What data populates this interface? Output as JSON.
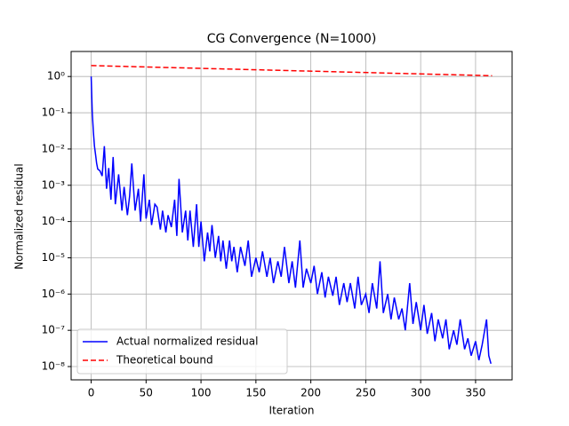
{
  "chart_data": {
    "type": "line",
    "title": "CG Convergence (N=1000)",
    "xlabel": "Iteration",
    "ylabel": "Normalized residual",
    "xlim": [
      -18.25,
      383.25
    ],
    "xticks": [
      0,
      50,
      100,
      150,
      200,
      250,
      300,
      350
    ],
    "ylim": [
      4.3e-09,
      4.9
    ],
    "yscale": "log",
    "yticks": [
      {
        "value": 1,
        "label": "10⁰"
      },
      {
        "value": 0.1,
        "label": "10⁻¹"
      },
      {
        "value": 0.01,
        "label": "10⁻²"
      },
      {
        "value": 0.001,
        "label": "10⁻³"
      },
      {
        "value": 0.0001,
        "label": "10⁻⁴"
      },
      {
        "value": 1e-05,
        "label": "10⁻⁵"
      },
      {
        "value": 1e-06,
        "label": "10⁻⁶"
      },
      {
        "value": 1e-07,
        "label": "10⁻⁷"
      },
      {
        "value": 1e-08,
        "label": "10⁻⁸"
      }
    ],
    "grid": true,
    "legend": "lower left",
    "series": [
      {
        "name": "Actual normalized residual",
        "color": "#0000ff",
        "linestyle": "solid",
        "x": [
          0,
          1,
          2,
          3,
          4,
          5,
          6,
          8,
          10,
          12,
          14,
          16,
          18,
          20,
          22,
          25,
          28,
          30,
          33,
          35,
          37,
          40,
          43,
          45,
          48,
          50,
          53,
          55,
          58,
          60,
          63,
          65,
          68,
          70,
          73,
          76,
          78,
          80,
          83,
          86,
          88,
          90,
          93,
          96,
          98,
          100,
          103,
          106,
          108,
          110,
          113,
          116,
          118,
          120,
          123,
          126,
          128,
          130,
          133,
          136,
          140,
          143,
          146,
          150,
          153,
          156,
          160,
          163,
          166,
          170,
          173,
          176,
          180,
          183,
          186,
          190,
          193,
          196,
          200,
          203,
          206,
          210,
          213,
          216,
          220,
          223,
          226,
          230,
          233,
          236,
          240,
          243,
          246,
          250,
          253,
          256,
          260,
          263,
          266,
          270,
          273,
          276,
          280,
          283,
          286,
          290,
          293,
          296,
          300,
          303,
          306,
          310,
          313,
          316,
          320,
          323,
          326,
          330,
          333,
          336,
          340,
          343,
          346,
          350,
          353,
          356,
          360,
          362,
          364
        ],
        "values": [
          1,
          0.1,
          0.03,
          0.012,
          0.007,
          0.004,
          0.0028,
          0.0025,
          0.0018,
          0.012,
          0.0008,
          0.003,
          0.0004,
          0.006,
          0.0003,
          0.002,
          0.0002,
          0.0009,
          0.00015,
          0.0005,
          0.004,
          0.0002,
          0.0008,
          0.0001,
          0.002,
          0.00012,
          0.0004,
          8e-05,
          0.0003,
          0.00025,
          6e-05,
          0.0002,
          5e-05,
          0.00015,
          7e-05,
          0.0004,
          4e-05,
          0.0015,
          5e-05,
          0.0002,
          3e-05,
          0.0002,
          2e-05,
          0.0003,
          2e-05,
          0.0001,
          8e-06,
          5e-05,
          1.5e-05,
          8e-05,
          1e-05,
          4e-05,
          8e-06,
          3e-05,
          5e-06,
          3e-05,
          8e-06,
          2e-05,
          4e-06,
          2e-05,
          6e-06,
          3e-05,
          3e-06,
          1e-05,
          4e-06,
          1.5e-05,
          3e-06,
          1e-05,
          2e-06,
          8e-06,
          3e-06,
          2e-05,
          2e-06,
          8e-06,
          1.5e-06,
          3e-05,
          1.5e-06,
          5e-06,
          2e-06,
          6e-06,
          1e-06,
          4e-06,
          8e-07,
          3e-06,
          9e-07,
          3e-06,
          5e-07,
          2e-06,
          6e-07,
          2e-06,
          4e-07,
          3e-06,
          5e-07,
          1e-06,
          3e-07,
          2e-06,
          4e-07,
          8e-06,
          3e-07,
          1e-06,
          2e-07,
          8e-07,
          2e-07,
          4e-07,
          1e-07,
          2e-06,
          1.5e-07,
          6e-07,
          1e-07,
          5e-07,
          8e-08,
          3e-07,
          5e-08,
          2e-07,
          6e-08,
          2e-07,
          3e-08,
          1e-07,
          4e-08,
          2e-07,
          3e-08,
          6e-08,
          2e-08,
          5e-08,
          1.5e-08,
          4e-08,
          2e-07,
          2e-08,
          1.2e-08
        ]
      },
      {
        "name": "Theoretical bound",
        "color": "#ff0000",
        "linestyle": "dashed",
        "x": [
          0,
          180,
          365
        ],
        "values": [
          2.0,
          1.456,
          1.05
        ]
      }
    ]
  }
}
